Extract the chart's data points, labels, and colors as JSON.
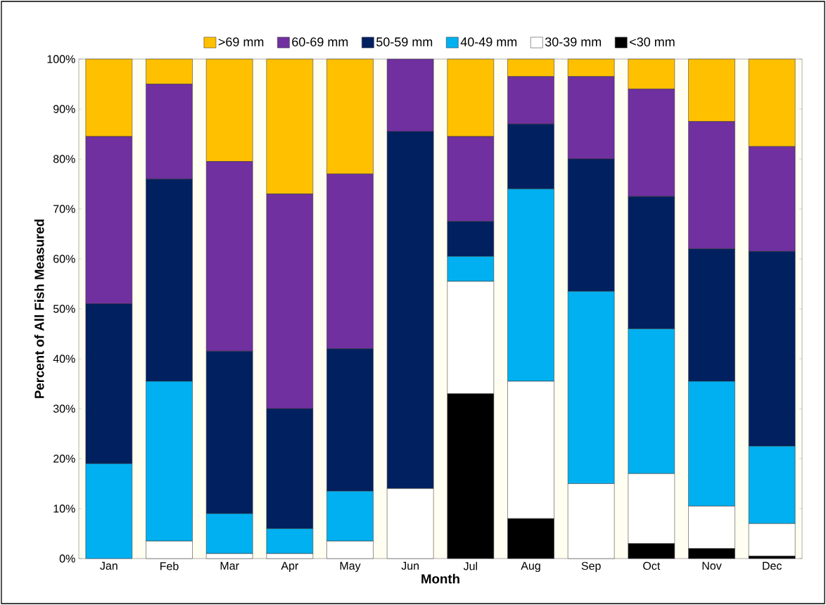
{
  "chart_data": {
    "type": "bar",
    "stacked": true,
    "xlabel": "Month",
    "ylabel": "Percent of All Fish Measured",
    "categories": [
      "Jan",
      "Feb",
      "Mar",
      "Apr",
      "May",
      "Jun",
      "Jul",
      "Aug",
      "Sep",
      "Oct",
      "Nov",
      "Dec"
    ],
    "series": [
      {
        "name": "<30 mm",
        "color": "#000000",
        "values": [
          0,
          0,
          0,
          0,
          0,
          0,
          33,
          8,
          0,
          3,
          2,
          0.5
        ]
      },
      {
        "name": "30-39 mm",
        "color": "#ffffff",
        "values": [
          0,
          3.5,
          1,
          1,
          3.5,
          14,
          22.5,
          27.5,
          15,
          14,
          8.5,
          6.5
        ]
      },
      {
        "name": "40-49 mm",
        "color": "#00b0f0",
        "values": [
          19,
          32,
          8,
          5,
          10,
          0,
          5,
          38.5,
          38.5,
          29,
          25,
          15.5
        ]
      },
      {
        "name": "50-59 mm",
        "color": "#002060",
        "values": [
          32,
          40.5,
          32.5,
          24,
          28.5,
          71.5,
          7,
          13,
          26.5,
          26.5,
          26.5,
          39
        ]
      },
      {
        "name": "60-69 mm",
        "color": "#7030a0",
        "values": [
          33.5,
          19,
          38,
          43,
          35,
          14.5,
          17,
          9.5,
          16.5,
          21.5,
          25.5,
          21
        ]
      },
      {
        "name": ">69 mm",
        "color": "#ffc000",
        "values": [
          15.5,
          5,
          20.5,
          27,
          23,
          0,
          15.5,
          3.5,
          3.5,
          6,
          12.5,
          17.5
        ]
      }
    ],
    "ylim": [
      0,
      100
    ],
    "yticks": [
      {
        "value": 0,
        "label": "0%"
      },
      {
        "value": 10,
        "label": "10%"
      },
      {
        "value": 20,
        "label": "20%"
      },
      {
        "value": 30,
        "label": "30%"
      },
      {
        "value": 40,
        "label": "40%"
      },
      {
        "value": 50,
        "label": "50%"
      },
      {
        "value": 60,
        "label": "60%"
      },
      {
        "value": 70,
        "label": "70%"
      },
      {
        "value": 80,
        "label": "80%"
      },
      {
        "value": 90,
        "label": "90%"
      },
      {
        "value": 100,
        "label": "100%"
      }
    ],
    "legend": "top",
    "grid": false
  }
}
